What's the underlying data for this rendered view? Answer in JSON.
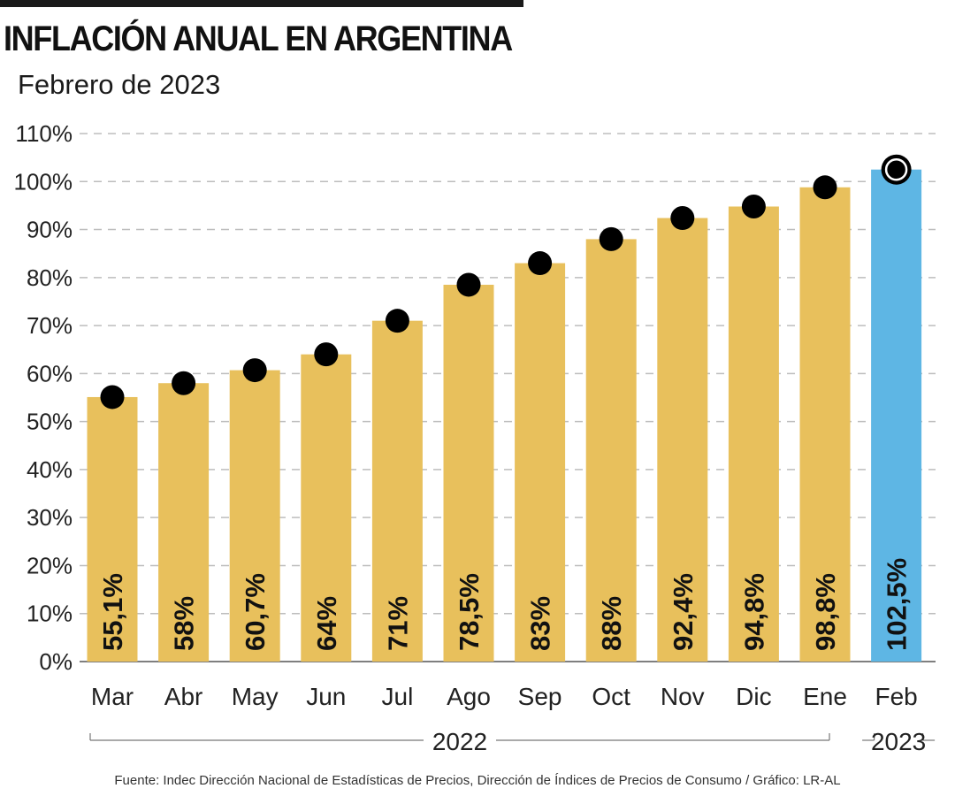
{
  "header": {
    "title": "INFLACIÓN ANUAL EN ARGENTINA",
    "subtitle": "Febrero de 2023"
  },
  "footer": {
    "source": "Fuente: Indec Dirección Nacional de Estadísticas de Precios, Dirección de Índices de Precios de Consumo / Gráfico: LR-AL"
  },
  "colors": {
    "bar": "#E8C05C",
    "highlight_bar": "#5EB6E4",
    "dot": "#000000",
    "grid": "#bdbdbd"
  },
  "chart_data": {
    "type": "bar",
    "title": "INFLACIÓN ANUAL EN ARGENTINA",
    "subtitle": "Febrero de 2023",
    "categories": [
      "Mar",
      "Abr",
      "May",
      "Jun",
      "Jul",
      "Ago",
      "Sep",
      "Oct",
      "Nov",
      "Dic",
      "Ene",
      "Feb"
    ],
    "values": [
      55.1,
      58,
      60.7,
      64,
      71,
      78.5,
      83,
      88,
      92.4,
      94.8,
      98.8,
      102.5
    ],
    "value_labels": [
      "55,1%",
      "58%",
      "60,7%",
      "64%",
      "71%",
      "78,5%",
      "83%",
      "88%",
      "92,4%",
      "94,8%",
      "98,8%",
      "102,5%"
    ],
    "highlight_index": 11,
    "ylim": [
      0,
      110
    ],
    "yticks": [
      0,
      10,
      20,
      30,
      40,
      50,
      60,
      70,
      80,
      90,
      100,
      110
    ],
    "ytick_labels": [
      "0%",
      "10%",
      "20%",
      "30%",
      "40%",
      "50%",
      "60%",
      "70%",
      "80%",
      "90%",
      "100%",
      "110%"
    ],
    "grid": true,
    "year_groups": [
      {
        "label": "2022",
        "from": 0,
        "to": 10
      },
      {
        "label": "2023",
        "from": 11,
        "to": 11
      }
    ]
  }
}
